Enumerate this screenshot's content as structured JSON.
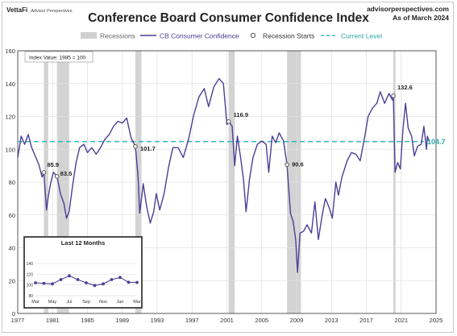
{
  "brand": {
    "name": "VettaFi",
    "sub": "Advisor Perspectives"
  },
  "source": {
    "site": "advisorperspectives.com",
    "asof": "As of March 2024"
  },
  "chart_data": [
    {
      "type": "line",
      "title": "Conference Board Consumer Confidence Index",
      "index_note": "Index Value: 1985 = 100",
      "legend": [
        "Recessions",
        "CB Consumer Confidence",
        "Recession Starts",
        "Current Level"
      ],
      "legend_placement": "top",
      "xlim": [
        1977,
        2025
      ],
      "ylim": [
        0,
        160
      ],
      "xticks": [
        1977,
        1981,
        1985,
        1989,
        1993,
        1997,
        2001,
        2005,
        2009,
        2013,
        2017,
        2021,
        2025
      ],
      "yticks": [
        0,
        20,
        40,
        60,
        80,
        100,
        120,
        140,
        160
      ],
      "grid": true,
      "current_level": 104.7,
      "current_level_label": "104.7",
      "recessions": [
        [
          1980.0,
          1980.5
        ],
        [
          1981.5,
          1982.9
        ],
        [
          1990.5,
          1991.2
        ],
        [
          2001.2,
          2001.9
        ],
        [
          2007.9,
          2009.5
        ],
        [
          2020.1,
          2020.35
        ]
      ],
      "recession_starts": [
        {
          "x": 1980.0,
          "y": 85.9,
          "label": "85.9"
        },
        {
          "x": 1981.5,
          "y": 83.5,
          "label": "83.5"
        },
        {
          "x": 1990.5,
          "y": 101.7,
          "label": "101.7"
        },
        {
          "x": 2001.2,
          "y": 116.9,
          "label": "116.9"
        },
        {
          "x": 2007.9,
          "y": 90.6,
          "label": "90.6"
        },
        {
          "x": 2020.1,
          "y": 132.6,
          "label": "132.6"
        }
      ],
      "series": [
        {
          "name": "CB Consumer Confidence",
          "color": "#4b3f96",
          "points": [
            [
              1977.0,
              95
            ],
            [
              1977.4,
              108
            ],
            [
              1977.8,
              103
            ],
            [
              1978.2,
              109
            ],
            [
              1978.6,
              101
            ],
            [
              1979.0,
              96
            ],
            [
              1979.4,
              91
            ],
            [
              1979.8,
              83
            ],
            [
              1980.0,
              85.9
            ],
            [
              1980.3,
              63
            ],
            [
              1980.5,
              71
            ],
            [
              1980.8,
              80
            ],
            [
              1981.1,
              86
            ],
            [
              1981.5,
              83.5
            ],
            [
              1981.9,
              73
            ],
            [
              1982.3,
              67
            ],
            [
              1982.6,
              58
            ],
            [
              1982.9,
              62
            ],
            [
              1983.3,
              78
            ],
            [
              1983.7,
              92
            ],
            [
              1984.1,
              101
            ],
            [
              1984.6,
              103
            ],
            [
              1985.0,
              98
            ],
            [
              1985.5,
              101
            ],
            [
              1986.0,
              97
            ],
            [
              1986.5,
              101
            ],
            [
              1987.0,
              106
            ],
            [
              1987.5,
              109
            ],
            [
              1988.0,
              114
            ],
            [
              1988.5,
              117
            ],
            [
              1989.0,
              116
            ],
            [
              1989.5,
              119
            ],
            [
              1990.0,
              107
            ],
            [
              1990.5,
              101.7
            ],
            [
              1990.8,
              84
            ],
            [
              1991.0,
              61
            ],
            [
              1991.4,
              79
            ],
            [
              1991.8,
              65
            ],
            [
              1992.2,
              55
            ],
            [
              1992.6,
              62
            ],
            [
              1992.9,
              73
            ],
            [
              1993.3,
              63
            ],
            [
              1993.8,
              73
            ],
            [
              1994.3,
              89
            ],
            [
              1994.8,
              101
            ],
            [
              1995.4,
              101
            ],
            [
              1996.0,
              95
            ],
            [
              1996.6,
              106
            ],
            [
              1997.2,
              121
            ],
            [
              1997.8,
              132
            ],
            [
              1998.4,
              137
            ],
            [
              1998.9,
              126
            ],
            [
              1999.5,
              138
            ],
            [
              2000.1,
              143
            ],
            [
              2000.6,
              140
            ],
            [
              2001.0,
              115
            ],
            [
              2001.2,
              116.9
            ],
            [
              2001.6,
              114
            ],
            [
              2001.9,
              90
            ],
            [
              2002.2,
              108
            ],
            [
              2002.6,
              94
            ],
            [
              2002.9,
              82
            ],
            [
              2003.2,
              62
            ],
            [
              2003.6,
              82
            ],
            [
              2004.0,
              95
            ],
            [
              2004.5,
              103
            ],
            [
              2005.0,
              105
            ],
            [
              2005.5,
              103
            ],
            [
              2005.8,
              86
            ],
            [
              2006.2,
              108
            ],
            [
              2006.6,
              104
            ],
            [
              2007.0,
              110
            ],
            [
              2007.5,
              105
            ],
            [
              2007.9,
              90.6
            ],
            [
              2008.3,
              61
            ],
            [
              2008.6,
              56
            ],
            [
              2008.9,
              45
            ],
            [
              2009.1,
              25
            ],
            [
              2009.4,
              49
            ],
            [
              2009.8,
              50
            ],
            [
              2010.2,
              54
            ],
            [
              2010.7,
              49
            ],
            [
              2011.1,
              68
            ],
            [
              2011.5,
              45
            ],
            [
              2011.9,
              59
            ],
            [
              2012.3,
              70
            ],
            [
              2012.7,
              65
            ],
            [
              2013.1,
              58
            ],
            [
              2013.5,
              80
            ],
            [
              2013.8,
              72
            ],
            [
              2014.2,
              83
            ],
            [
              2014.8,
              93
            ],
            [
              2015.3,
              98
            ],
            [
              2015.8,
              97
            ],
            [
              2016.3,
              93
            ],
            [
              2016.8,
              107
            ],
            [
              2017.2,
              120
            ],
            [
              2017.7,
              125
            ],
            [
              2018.2,
              128
            ],
            [
              2018.6,
              135
            ],
            [
              2019.1,
              128
            ],
            [
              2019.6,
              134
            ],
            [
              2020.0,
              130
            ],
            [
              2020.1,
              132.6
            ],
            [
              2020.3,
              86
            ],
            [
              2020.6,
              92
            ],
            [
              2020.9,
              88
            ],
            [
              2021.2,
              112
            ],
            [
              2021.5,
              128
            ],
            [
              2021.8,
              113
            ],
            [
              2022.2,
              108
            ],
            [
              2022.5,
              96
            ],
            [
              2022.9,
              102
            ],
            [
              2023.3,
              103
            ],
            [
              2023.6,
              114
            ],
            [
              2023.9,
              100
            ],
            [
              2024.0,
              108
            ],
            [
              2024.2,
              104.7
            ]
          ]
        }
      ]
    },
    {
      "type": "line",
      "title": "Last 12 Months",
      "categories": [
        "Mar",
        "Apr",
        "May",
        "Jun",
        "Jul",
        "Aug",
        "Sep",
        "Oct",
        "Nov",
        "Dec",
        "Jan",
        "Feb",
        "Mar"
      ],
      "xtick_labels": [
        "Mar",
        "May",
        "Jul",
        "Sep",
        "Nov",
        "Jan",
        "Mar"
      ],
      "ylim": [
        80,
        140
      ],
      "yticks": [
        80,
        100,
        120,
        140
      ],
      "series": [
        {
          "name": "",
          "color": "#4b3f96",
          "values": [
            104,
            103,
            102,
            110,
            117,
            110,
            104,
            99,
            102,
            110,
            114,
            105,
            104.7
          ]
        }
      ]
    }
  ]
}
